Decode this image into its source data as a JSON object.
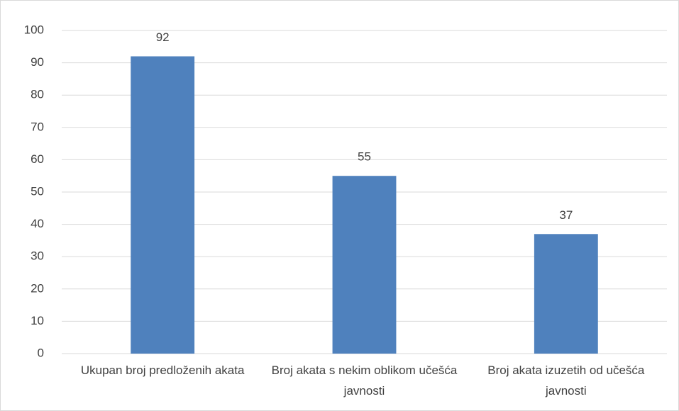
{
  "chart_data": {
    "type": "bar",
    "categories": [
      "Ukupan broj predloženih akata",
      "Broj akata s nekim oblikom učešća javnosti",
      "Broj akata izuzetih od učešća javnosti"
    ],
    "values": [
      92,
      55,
      37
    ],
    "color": "#4f81bd",
    "ylim": [
      0,
      100
    ],
    "yticks": [
      0,
      10,
      20,
      30,
      40,
      50,
      60,
      70,
      80,
      90,
      100
    ],
    "grid": true
  }
}
